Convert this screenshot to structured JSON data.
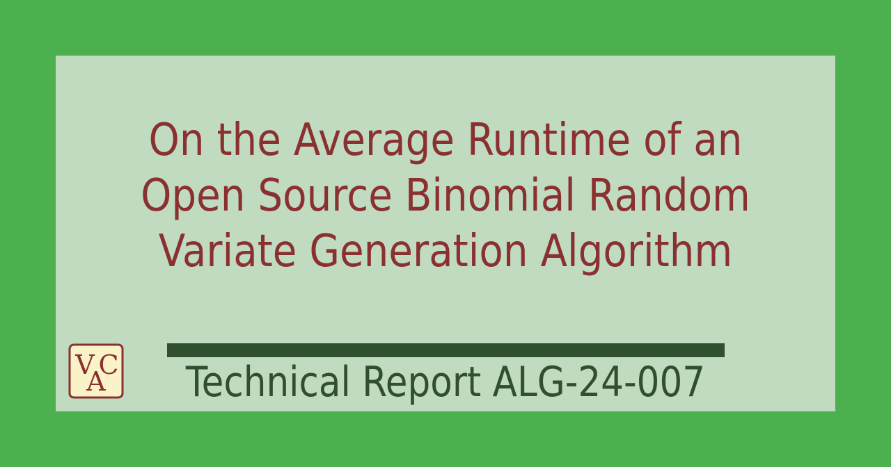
{
  "title": {
    "line1": "On the Average Runtime of an",
    "line2": "Open Source Binomial Random",
    "line3": "Variate Generation Algorithm"
  },
  "report": {
    "label": "Technical Report ALG-24-007"
  },
  "logo": {
    "letters": [
      "V",
      "A",
      "C"
    ]
  },
  "colors": {
    "background": "#4caf50",
    "panel": "#c0dbc0",
    "title": "#8b3030",
    "accent": "#2f4f2f",
    "logo_fill": "#fbf3c8"
  }
}
